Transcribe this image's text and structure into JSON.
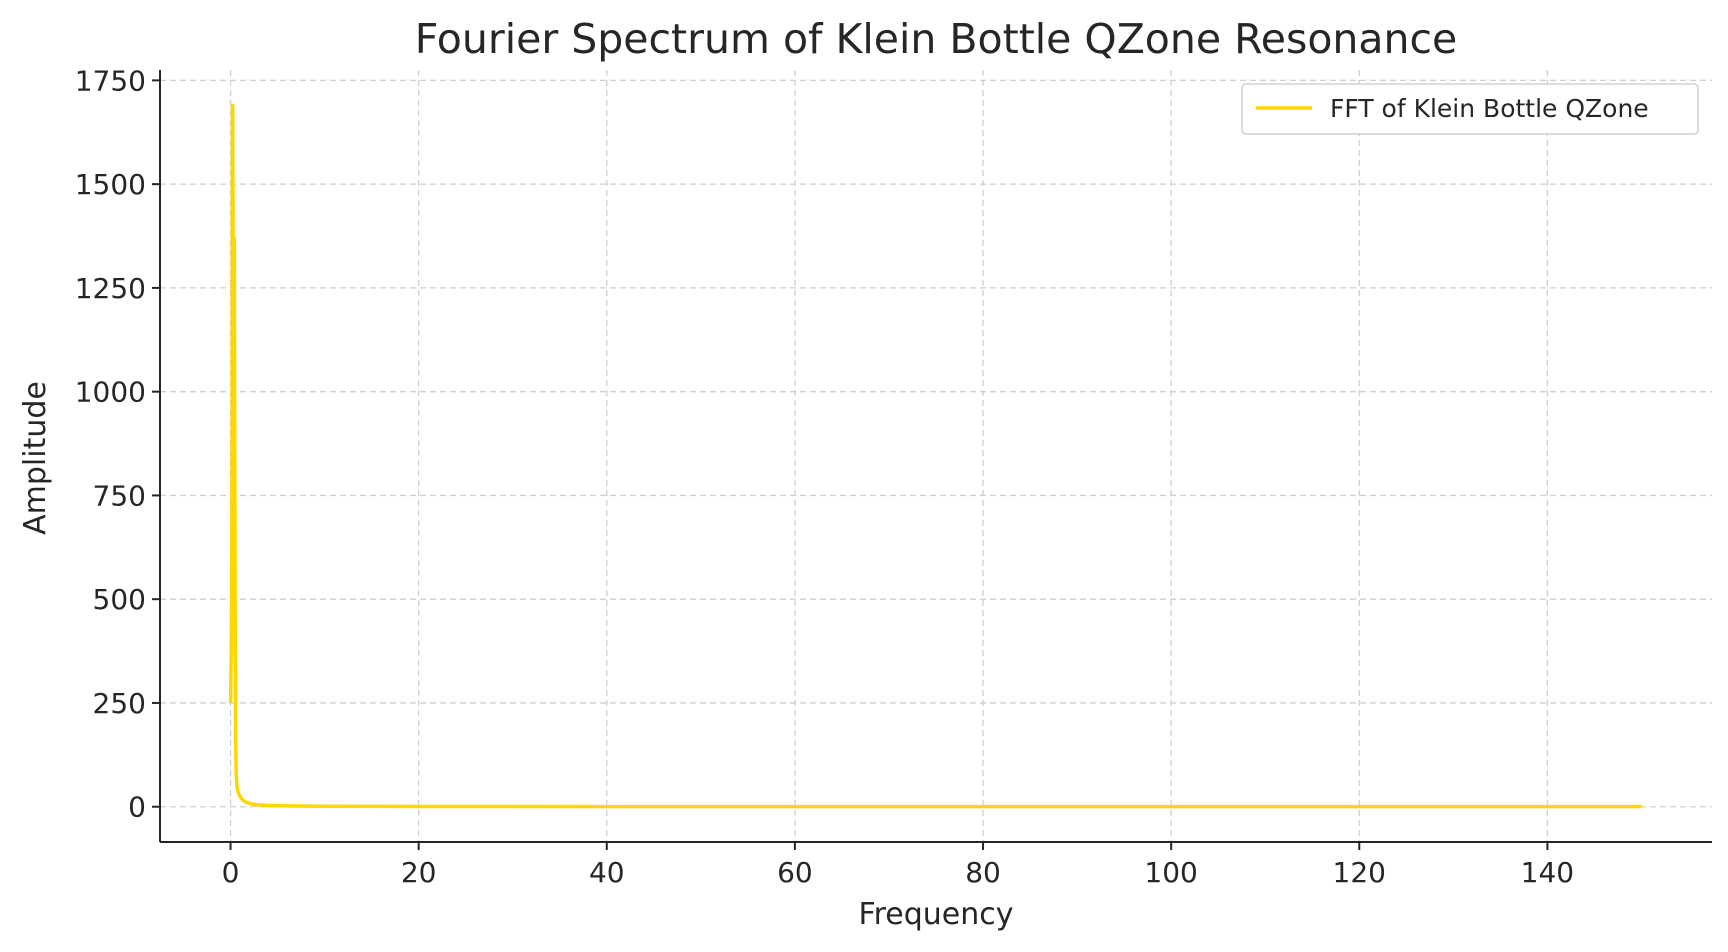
{
  "chart_data": {
    "type": "line",
    "title": "Fourier Spectrum of Klein Bottle QZone Resonance",
    "xlabel": "Frequency",
    "ylabel": "Amplitude",
    "xlim": [
      -7.5,
      157.5
    ],
    "ylim": [
      -85,
      1775
    ],
    "xticks": [
      0,
      20,
      40,
      60,
      80,
      100,
      120,
      140
    ],
    "xtick_labels": [
      "0",
      "20",
      "40",
      "60",
      "80",
      "100",
      "120",
      "140"
    ],
    "yticks": [
      0,
      250,
      500,
      750,
      1000,
      1250,
      1500,
      1750
    ],
    "ytick_labels": [
      "0",
      "250",
      "500",
      "750",
      "1000",
      "1250",
      "1500",
      "1750"
    ],
    "grid": true,
    "legend": {
      "position": "top-right"
    },
    "series": [
      {
        "name": "FFT of Klein Bottle QZone",
        "color": "#FFD700",
        "x": [
          0,
          0.1,
          0.17,
          0.2,
          0.23,
          0.27,
          0.3,
          0.33,
          0.37,
          0.4,
          0.43,
          0.47,
          0.5,
          0.53,
          0.57,
          0.6,
          0.67,
          0.8,
          1.0,
          1.3,
          1.7,
          2.2,
          3.0,
          4.0,
          6.0,
          10.0,
          20.0,
          50.0,
          100.0,
          150.0
        ],
        "y": [
          250,
          420,
          900,
          1690,
          1685,
          1400,
          620,
          900,
          1370,
          1365,
          1000,
          700,
          400,
          200,
          120,
          80,
          50,
          35,
          25,
          16,
          10,
          7,
          4,
          3,
          2,
          1,
          0.6,
          0.3,
          0.2,
          0.1
        ]
      }
    ]
  }
}
